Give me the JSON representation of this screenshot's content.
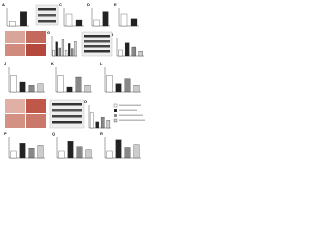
{
  "chart_data": [
    {
      "type": "bar",
      "label": "A",
      "values": [
        1,
        3.2
      ],
      "colors": [
        "#ffffff",
        "#222222"
      ],
      "ylim": [
        0,
        4
      ]
    },
    {
      "type": "bar",
      "label": "C",
      "values": [
        1,
        0.5
      ],
      "colors": [
        "#ffffff",
        "#222222"
      ],
      "ylim": [
        0,
        1.5
      ]
    },
    {
      "type": "bar",
      "label": "D",
      "values": [
        1,
        2.4
      ],
      "colors": [
        "#ffffff",
        "#222222"
      ],
      "ylim": [
        0,
        3
      ]
    },
    {
      "type": "bar",
      "label": "E",
      "values": [
        1,
        0.6
      ],
      "colors": [
        "#ffffff",
        "#222222"
      ],
      "ylim": [
        0,
        1.5
      ]
    },
    {
      "type": "bar",
      "label": "G",
      "values": [
        1,
        2.5,
        1.4,
        2.9,
        1,
        2.2,
        1.3,
        2.6
      ],
      "colors": [
        "#ffffff",
        "#222222",
        "#888888",
        "#cccccc",
        "#ffffff",
        "#222222",
        "#888888",
        "#cccccc"
      ],
      "ylim": [
        0,
        3.5
      ]
    },
    {
      "type": "bar",
      "label": "I",
      "values": [
        1,
        2.2,
        1.5,
        0.8
      ],
      "colors": [
        "#ffffff",
        "#222222",
        "#888888",
        "#cccccc"
      ],
      "ylim": [
        0,
        3
      ]
    },
    {
      "type": "bar",
      "label": "J",
      "values": [
        1,
        0.6,
        0.4,
        0.5
      ],
      "colors": [
        "#ffffff",
        "#222222",
        "#888888",
        "#cccccc"
      ],
      "ylim": [
        0,
        1.5
      ]
    },
    {
      "type": "bar",
      "label": "K",
      "values": [
        1,
        0.3,
        0.9,
        0.4
      ],
      "colors": [
        "#ffffff",
        "#222222",
        "#888888",
        "#cccccc"
      ],
      "ylim": [
        0,
        1.5
      ]
    },
    {
      "type": "bar",
      "label": "L",
      "values": [
        1,
        0.5,
        0.8,
        0.4
      ],
      "colors": [
        "#ffffff",
        "#222222",
        "#888888",
        "#cccccc"
      ],
      "ylim": [
        0,
        1.5
      ]
    },
    {
      "type": "bar",
      "label": "O",
      "values": [
        1,
        0.4,
        0.7,
        0.5
      ],
      "colors": [
        "#ffffff",
        "#222222",
        "#888888",
        "#cccccc"
      ],
      "ylim": [
        0,
        1.5
      ]
    },
    {
      "type": "bar",
      "label": "P",
      "values": [
        1,
        2.1,
        1.4,
        1.8
      ],
      "colors": [
        "#ffffff",
        "#222222",
        "#888888",
        "#cccccc"
      ],
      "ylim": [
        0,
        3
      ]
    },
    {
      "type": "bar",
      "label": "Q",
      "values": [
        1,
        2.4,
        1.6,
        1.2
      ],
      "colors": [
        "#ffffff",
        "#222222",
        "#888888",
        "#cccccc"
      ],
      "ylim": [
        0,
        3
      ]
    },
    {
      "type": "bar",
      "label": "R",
      "values": [
        1,
        2.6,
        1.5,
        1.9
      ],
      "colors": [
        "#ffffff",
        "#222222",
        "#888888",
        "#cccccc"
      ],
      "ylim": [
        0,
        3
      ]
    }
  ]
}
